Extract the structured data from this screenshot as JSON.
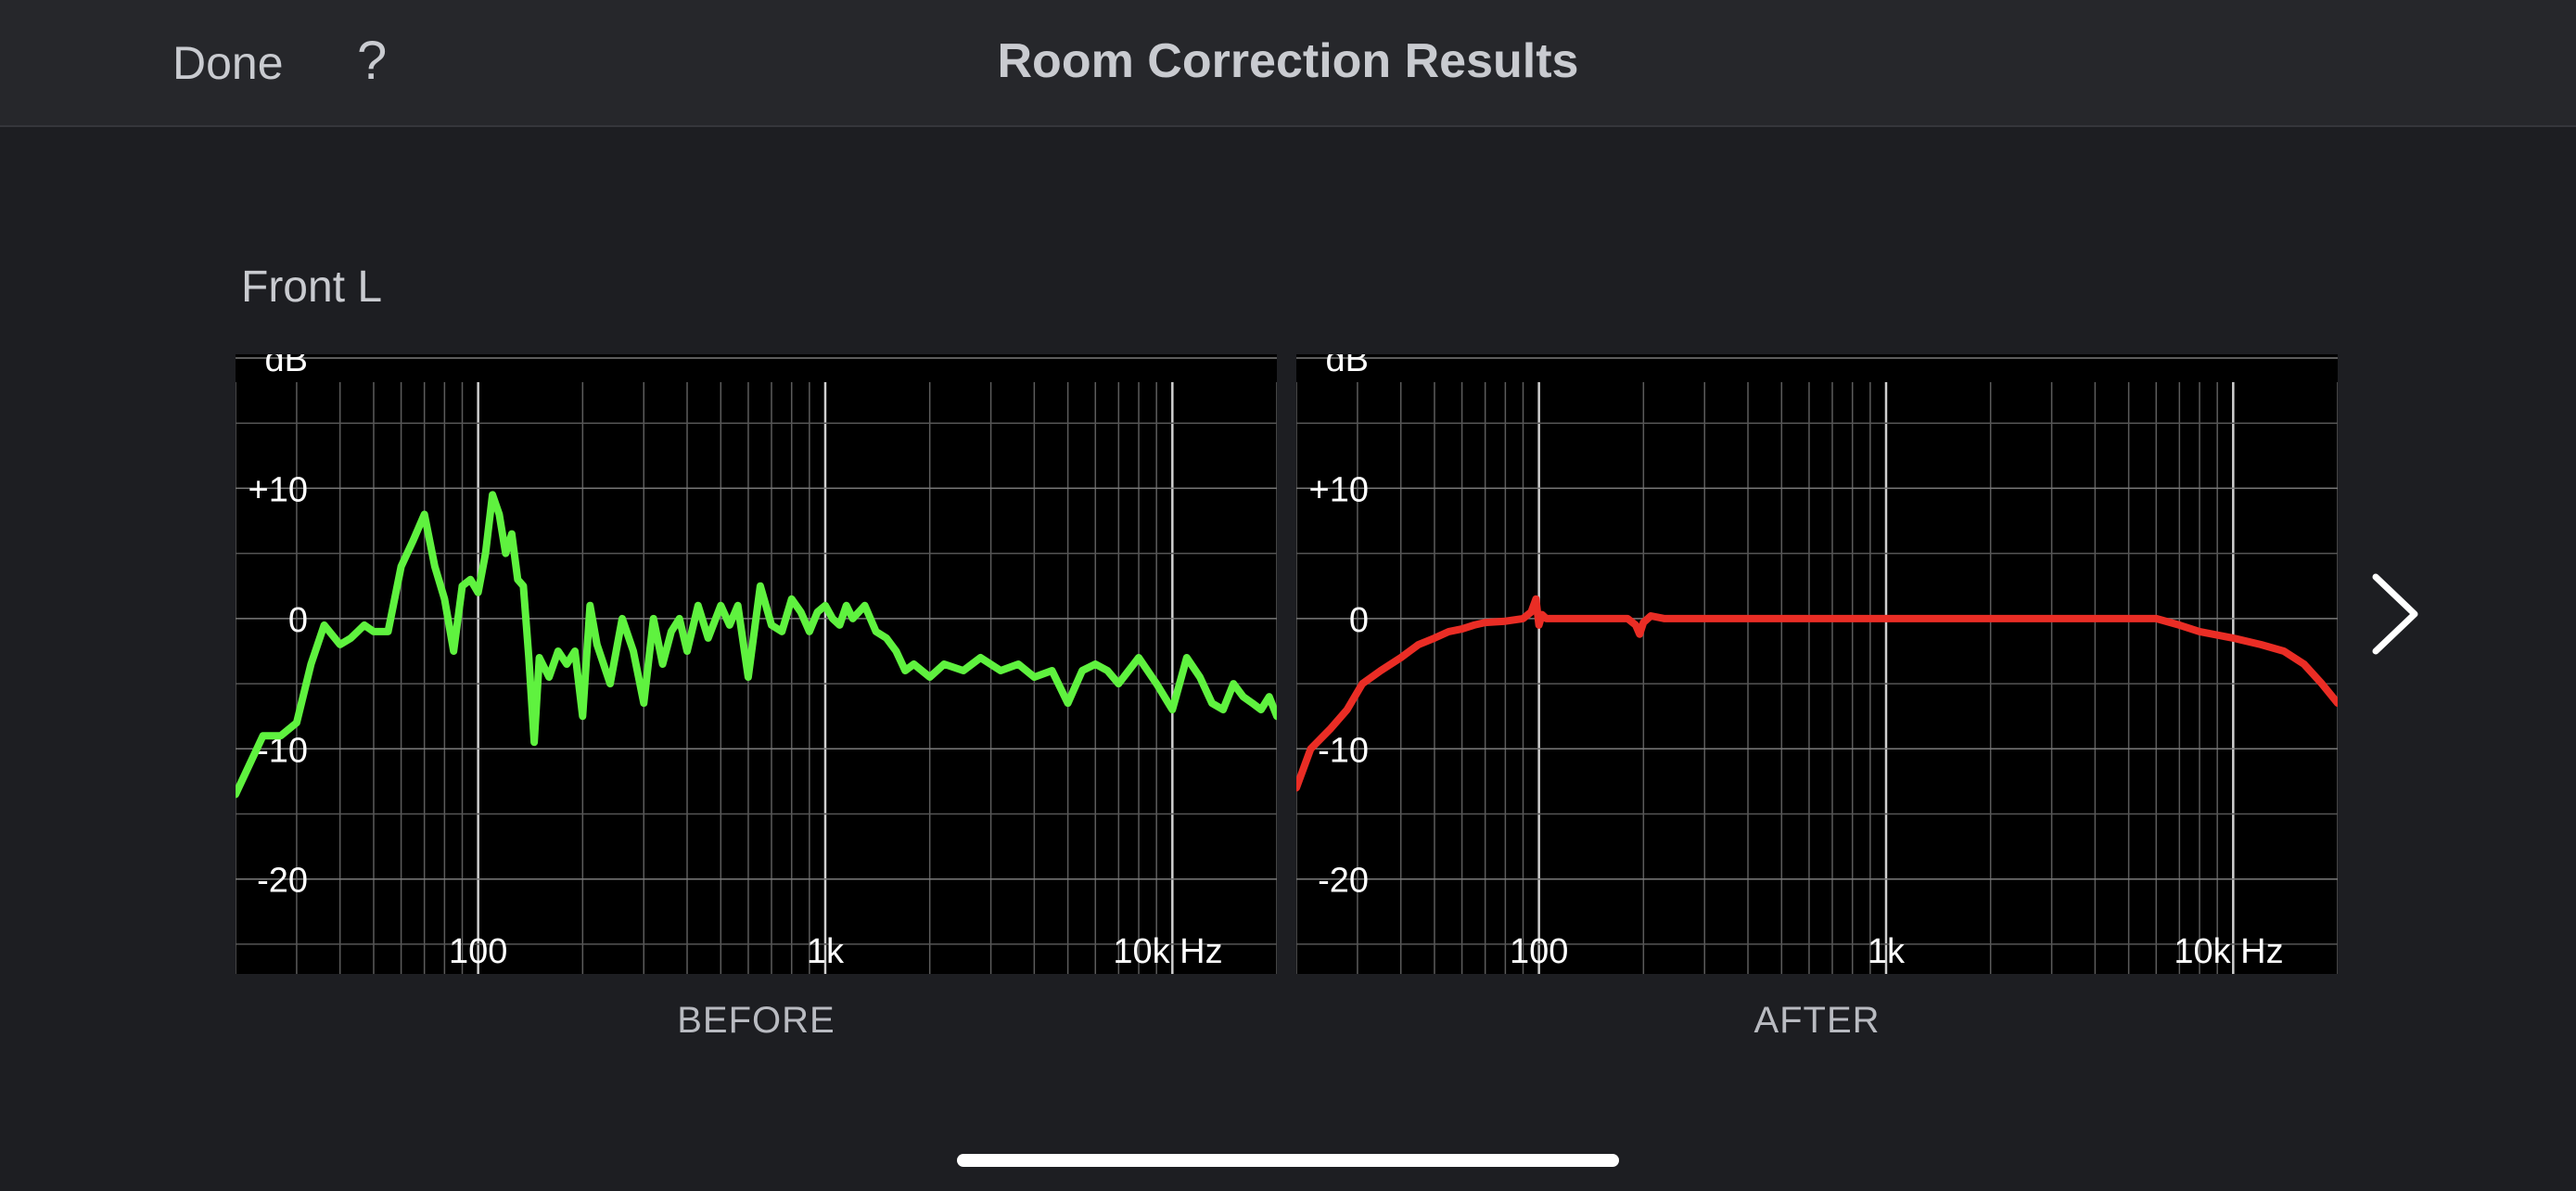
{
  "header": {
    "done_label": "Done",
    "help_label": "?",
    "title": "Room Correction Results"
  },
  "channel": {
    "label": "Front L"
  },
  "next_icon": "chevron-right-icon",
  "colors": {
    "before_curve": "#5ff23f",
    "after_curve": "#ea2d25",
    "background": "#1d1e22",
    "nav_background": "#26272b"
  },
  "chart_data": [
    {
      "type": "line",
      "caption": "BEFORE",
      "xlabel": "Hz",
      "ylabel": "dB",
      "x_scale": "log",
      "xlim": [
        20,
        20000
      ],
      "ylim": [
        -27,
        20
      ],
      "x_ticks": [
        {
          "value": 100,
          "label": "100"
        },
        {
          "value": 1000,
          "label": "1k"
        },
        {
          "value": 10000,
          "label": "10k Hz"
        }
      ],
      "y_ticks": [
        {
          "value": 20,
          "label": "dB"
        },
        {
          "value": 10,
          "label": "+10"
        },
        {
          "value": 0,
          "label": "0"
        },
        {
          "value": -10,
          "label": "-10"
        },
        {
          "value": -20,
          "label": "-20"
        }
      ],
      "grid": true,
      "series": [
        {
          "color": "#5ff23f",
          "x": [
            20,
            24,
            27,
            30,
            33,
            36,
            40,
            43,
            47,
            50,
            55,
            60,
            65,
            70,
            75,
            80,
            85,
            90,
            95,
            100,
            105,
            110,
            115,
            120,
            125,
            130,
            135,
            140,
            145,
            150,
            160,
            170,
            180,
            190,
            200,
            210,
            220,
            240,
            260,
            280,
            300,
            320,
            340,
            360,
            380,
            400,
            430,
            460,
            500,
            530,
            560,
            600,
            650,
            700,
            750,
            800,
            850,
            900,
            950,
            1000,
            1050,
            1100,
            1150,
            1200,
            1300,
            1400,
            1500,
            1600,
            1700,
            1800,
            2000,
            2200,
            2500,
            2800,
            3200,
            3600,
            4000,
            4500,
            5000,
            5500,
            6000,
            6500,
            7000,
            8000,
            9000,
            10000,
            11000,
            12000,
            13000,
            14000,
            15000,
            16000,
            17000,
            18000,
            19000,
            20000
          ],
          "y": [
            -13.5,
            -9,
            -9,
            -8,
            -3.5,
            -0.5,
            -2,
            -1.5,
            -0.5,
            -1,
            -1,
            4,
            6,
            8,
            4,
            1.5,
            -2.5,
            2.5,
            3,
            2,
            5,
            9.5,
            8,
            5,
            6.5,
            3,
            2.5,
            -3,
            -9.5,
            -3,
            -4.5,
            -2.5,
            -3.5,
            -2.5,
            -7.5,
            1,
            -2,
            -5,
            0,
            -2.5,
            -6.5,
            0,
            -3.5,
            -1,
            0,
            -2.5,
            1,
            -1.5,
            1,
            -0.5,
            1,
            -4.5,
            2.5,
            -0.5,
            -1,
            1.5,
            0.5,
            -1,
            0.5,
            1,
            0,
            -0.5,
            1,
            0,
            1,
            -1,
            -1.5,
            -2.5,
            -4,
            -3.5,
            -4.5,
            -3.5,
            -4,
            -3,
            -4,
            -3.5,
            -4.5,
            -4,
            -6.5,
            -4,
            -3.5,
            -4,
            -5,
            -3,
            -5,
            -7,
            -3,
            -4.5,
            -6.5,
            -7,
            -5,
            -6,
            -6.5,
            -7,
            -6,
            -7.5
          ]
        }
      ]
    },
    {
      "type": "line",
      "caption": "AFTER",
      "xlabel": "Hz",
      "ylabel": "dB",
      "x_scale": "log",
      "xlim": [
        20,
        20000
      ],
      "ylim": [
        -27,
        20
      ],
      "x_ticks": [
        {
          "value": 100,
          "label": "100"
        },
        {
          "value": 1000,
          "label": "1k"
        },
        {
          "value": 10000,
          "label": "10k Hz"
        }
      ],
      "y_ticks": [
        {
          "value": 20,
          "label": "dB"
        },
        {
          "value": 10,
          "label": "+10"
        },
        {
          "value": 0,
          "label": "0"
        },
        {
          "value": -10,
          "label": "-10"
        },
        {
          "value": -20,
          "label": "-20"
        }
      ],
      "grid": true,
      "series": [
        {
          "color": "#ea2d25",
          "x": [
            20,
            22,
            25,
            28,
            31,
            35,
            40,
            45,
            50,
            55,
            60,
            65,
            70,
            80,
            90,
            95,
            98,
            100,
            102,
            105,
            110,
            120,
            140,
            160,
            180,
            190,
            195,
            200,
            210,
            230,
            260,
            300,
            350,
            400,
            500,
            600,
            700,
            800,
            1000,
            1500,
            2000,
            3000,
            4000,
            5000,
            6000,
            7000,
            8000,
            10000,
            12000,
            14000,
            16000,
            18000,
            20000
          ],
          "y": [
            -13,
            -10,
            -8.5,
            -7,
            -5,
            -4,
            -3,
            -2,
            -1.5,
            -1,
            -0.8,
            -0.5,
            -0.3,
            -0.2,
            0,
            0.5,
            1.5,
            -0.5,
            0.3,
            0,
            0,
            0,
            0,
            0,
            0,
            -0.5,
            -1.2,
            -0.3,
            0.2,
            0,
            0,
            0,
            0,
            0,
            0,
            0,
            0,
            0,
            0,
            0,
            0,
            0,
            0,
            0,
            0,
            -0.5,
            -1,
            -1.5,
            -2,
            -2.5,
            -3.5,
            -5,
            -6.5
          ]
        }
      ]
    }
  ]
}
